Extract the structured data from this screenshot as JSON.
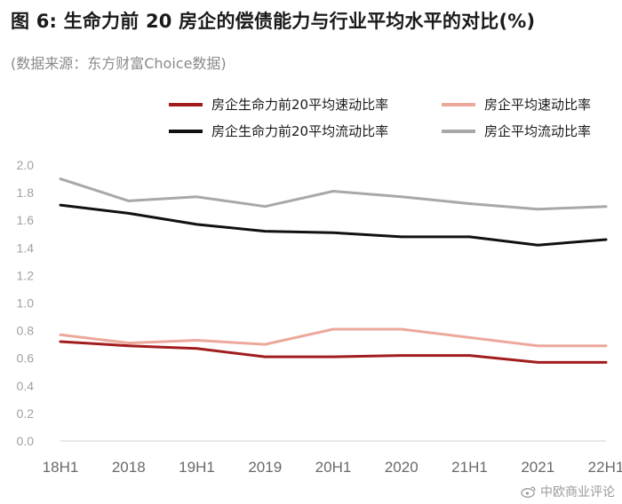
{
  "title": "图 6: 生命力前 20 房企的偿债能力与行业平均水平的对比(%)",
  "subtitle": "(数据来源：东方财富Choice数据)",
  "watermark": "中欧商业评论",
  "chart_data": {
    "type": "line",
    "categories": [
      "18H1",
      "2018",
      "19H1",
      "2019",
      "20H1",
      "2020",
      "21H1",
      "2021",
      "22H1"
    ],
    "ylim": [
      0,
      2.0
    ],
    "yticks": [
      "0.0",
      "0.2",
      "0.4",
      "0.6",
      "0.8",
      "1.0",
      "1.2",
      "1.4",
      "1.6",
      "1.8",
      "2.0"
    ],
    "grid": false,
    "legend_position": "top",
    "series": [
      {
        "name": "房企生命力前20平均速动比率",
        "color": "#a11d1d",
        "values": [
          0.72,
          0.69,
          0.67,
          0.61,
          0.61,
          0.62,
          0.62,
          0.57,
          0.57
        ]
      },
      {
        "name": "房企平均速动比率",
        "color": "#eca89b",
        "values": [
          0.77,
          0.71,
          0.73,
          0.7,
          0.81,
          0.81,
          0.75,
          0.69,
          0.69
        ]
      },
      {
        "name": "房企生命力前20平均流动比率",
        "color": "#111111",
        "values": [
          1.71,
          1.65,
          1.57,
          1.52,
          1.51,
          1.48,
          1.48,
          1.42,
          1.46
        ]
      },
      {
        "name": "房企平均流动比率",
        "color": "#a8a8a8",
        "values": [
          1.9,
          1.74,
          1.77,
          1.7,
          1.81,
          1.77,
          1.72,
          1.68,
          1.7
        ]
      }
    ]
  }
}
